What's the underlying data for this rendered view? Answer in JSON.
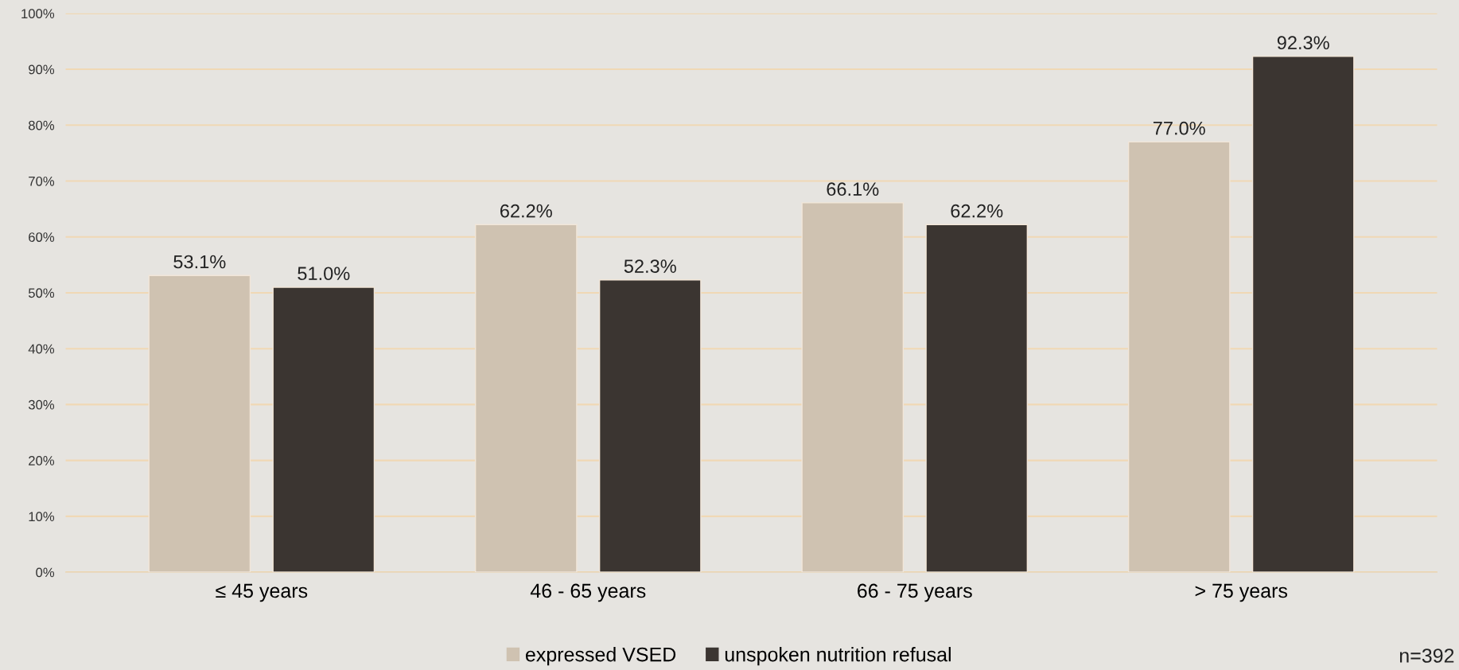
{
  "chart_data": {
    "type": "bar",
    "categories": [
      "≤ 45 years",
      "46 - 65 years",
      "66 - 75 years",
      "> 75 years"
    ],
    "series": [
      {
        "name": "expressed VSED",
        "color": "#cfc2b1",
        "values": [
          53.1,
          62.2,
          66.1,
          77.0
        ],
        "value_labels": [
          "53.1%",
          "62.2%",
          "66.1%",
          "77.0%"
        ]
      },
      {
        "name": "unspoken nutrition refusal",
        "color": "#3b3531",
        "values": [
          51.0,
          52.3,
          62.2,
          92.3
        ],
        "value_labels": [
          "51.0%",
          "52.3%",
          "62.2%",
          "92.3%"
        ]
      }
    ],
    "ylim": [
      0,
      100
    ],
    "yticks": [
      {
        "value": 0,
        "label": "0%"
      },
      {
        "value": 10,
        "label": "10%"
      },
      {
        "value": 20,
        "label": "20%"
      },
      {
        "value": 30,
        "label": "30%"
      },
      {
        "value": 40,
        "label": "40%"
      },
      {
        "value": 50,
        "label": "50%"
      },
      {
        "value": 60,
        "label": "60%"
      },
      {
        "value": 70,
        "label": "70%"
      },
      {
        "value": 80,
        "label": "80%"
      },
      {
        "value": 90,
        "label": "90%"
      },
      {
        "value": 100,
        "label": "100%"
      }
    ],
    "grid": "y",
    "legend": "bottom",
    "annotations": [
      "n=392"
    ]
  }
}
